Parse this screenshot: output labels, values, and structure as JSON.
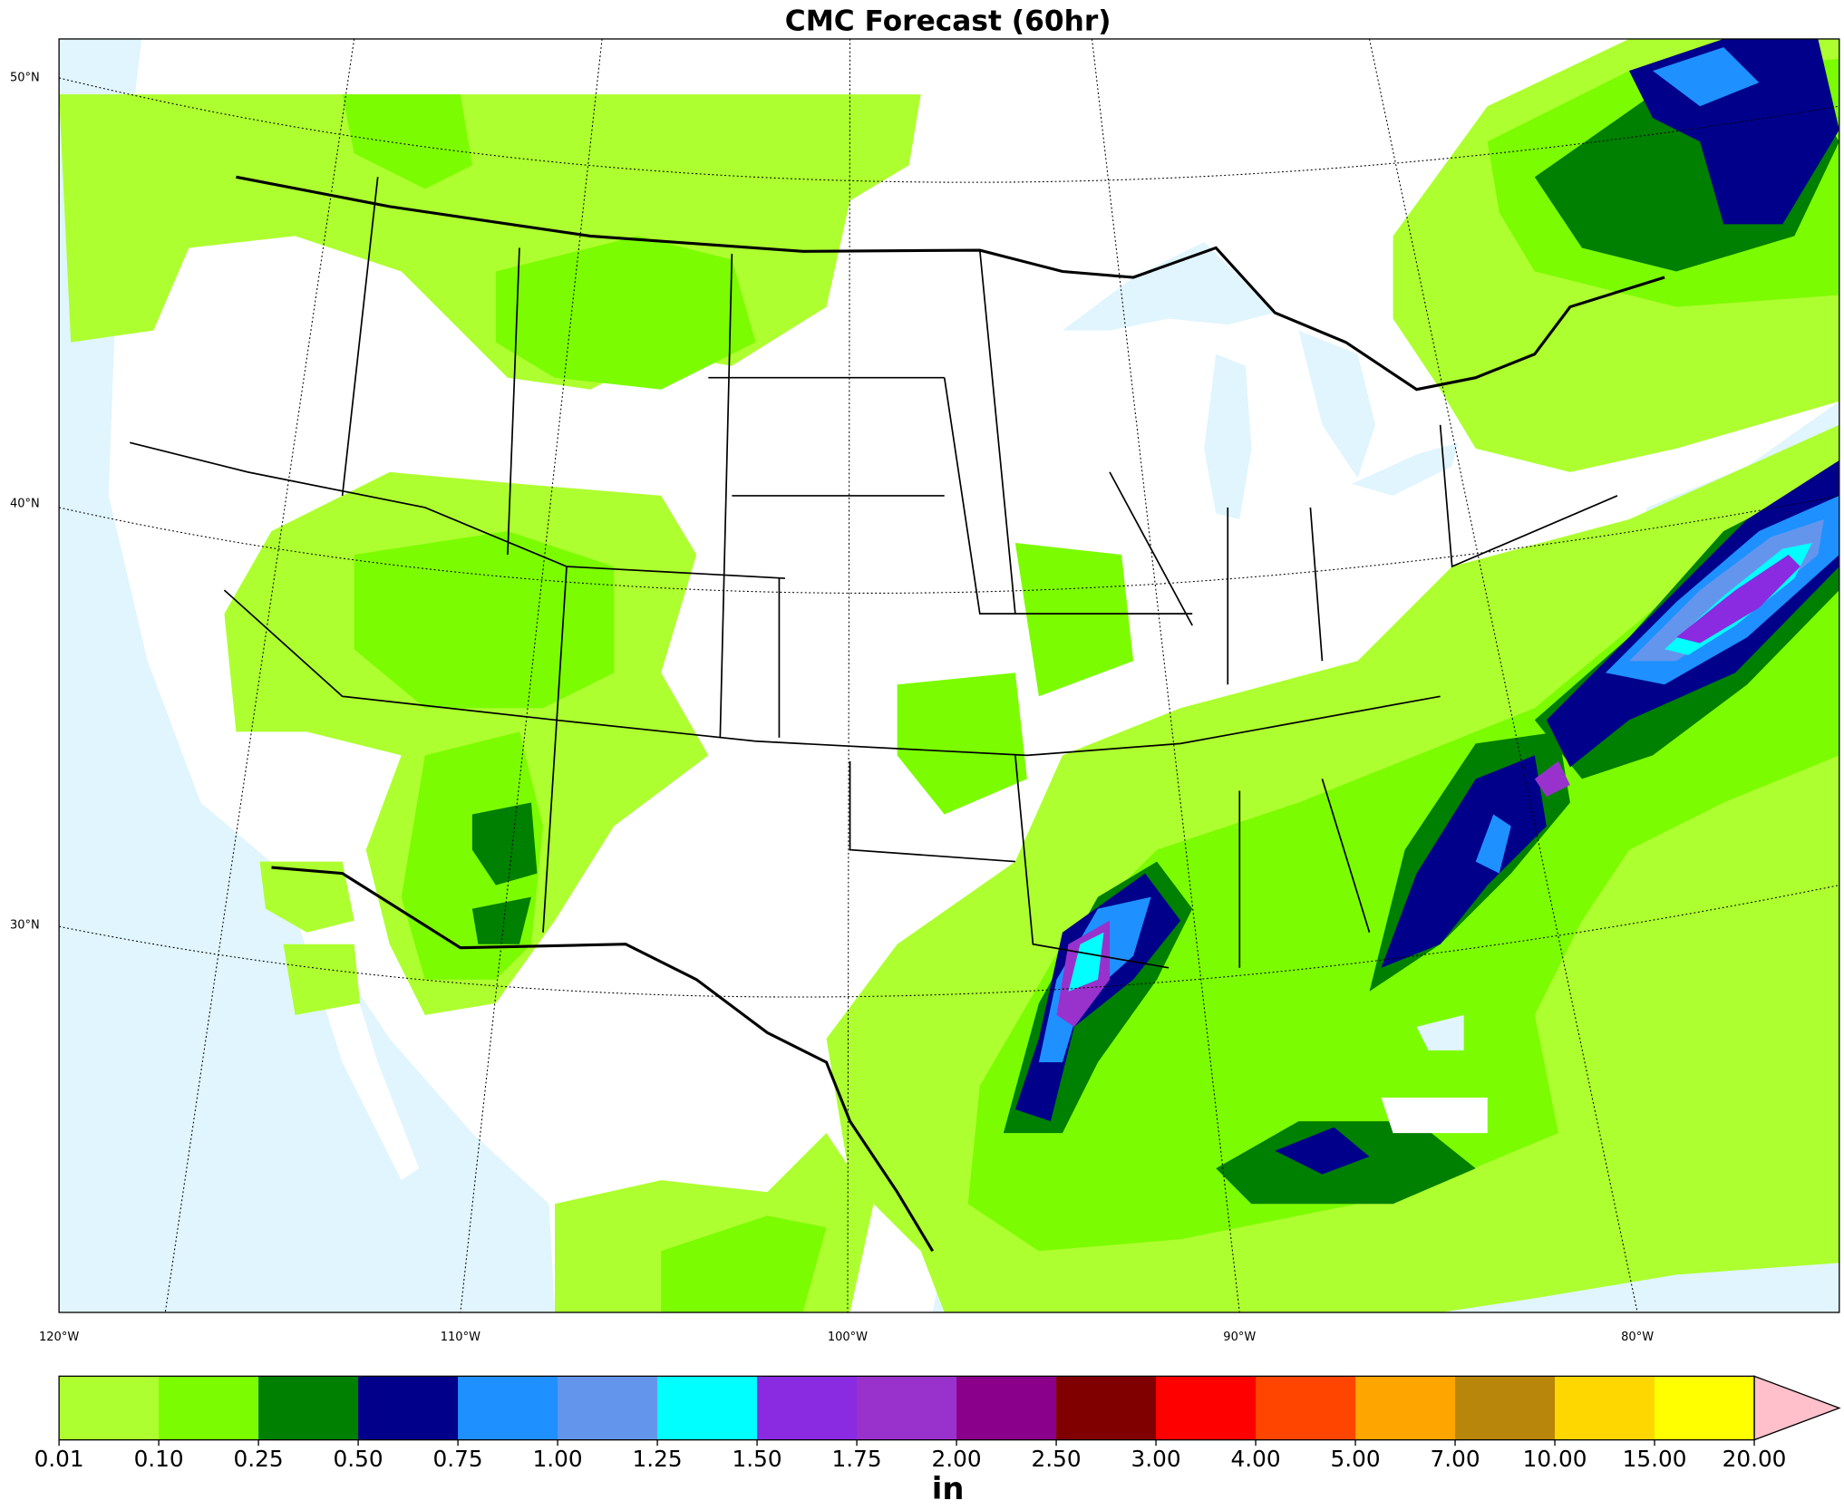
{
  "chart_data": {
    "type": "map",
    "title": "CMC Forecast (60hr)",
    "lat_labels": [
      "50°N",
      "40°N",
      "30°N"
    ],
    "lon_labels": [
      "120°W",
      "110°W",
      "100°W",
      "90°W",
      "80°W"
    ],
    "colorbar": {
      "label": "in",
      "levels": [
        0.01,
        {
          "value": 0.1,
          "label": "0.10"
        },
        0.25,
        {
          "value": 0.5,
          "label": "0.50"
        },
        0.75,
        {
          "value": 1,
          "label": "1.00"
        },
        1.25,
        {
          "value": 1.5,
          "label": "1.50"
        },
        1.75,
        {
          "value": 2,
          "label": "2.00"
        },
        {
          "value": 2.5,
          "label": "2.50"
        },
        {
          "value": 3,
          "label": "3.00"
        },
        {
          "value": 4,
          "label": "4.00"
        },
        {
          "value": 5,
          "label": "5.00"
        },
        {
          "value": 7,
          "label": "7.00"
        },
        {
          "value": 10,
          "label": "10.00"
        },
        {
          "value": 15,
          "label": "15.00"
        },
        {
          "value": 20,
          "label": "20.00"
        }
      ],
      "colors": [
        "#adff2f",
        "#7cfc00",
        "#008000",
        "#00008b",
        "#1e90ff",
        "#6495ed",
        "#00ffff",
        "#8a2be2",
        "#9932cc",
        "#8b008b",
        "#800000",
        "#ff0000",
        "#ff4500",
        "#ffa500",
        "#b8860b",
        "#ffd700",
        "#ffff00"
      ],
      "extend_color": "#ffc0cb"
    }
  }
}
